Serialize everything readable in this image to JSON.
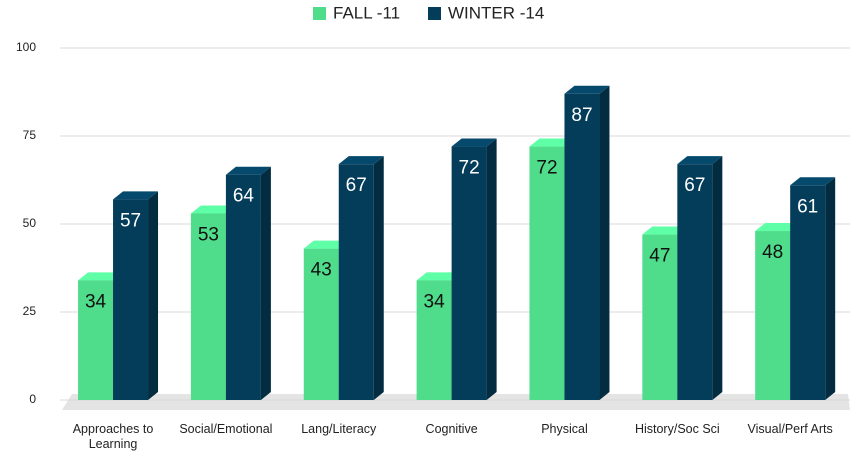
{
  "chart_data": {
    "type": "bar3d",
    "categories": [
      "Approaches to Learning",
      "Social/Emotional",
      "Lang/Literacy",
      "Cognitive",
      "Physical",
      "History/Soc Sci",
      "Visual/Perf Arts"
    ],
    "series": [
      {
        "name": "FALL -11",
        "color": "#4fdc8b",
        "values": [
          34,
          53,
          43,
          34,
          72,
          47,
          48
        ]
      },
      {
        "name": "WINTER -14",
        "color": "#043d5a",
        "values": [
          57,
          64,
          67,
          72,
          87,
          67,
          61
        ]
      }
    ],
    "ylim": [
      0,
      100
    ],
    "yticks": [
      0,
      25,
      50,
      75,
      100
    ],
    "grid": true,
    "legend": "top"
  }
}
